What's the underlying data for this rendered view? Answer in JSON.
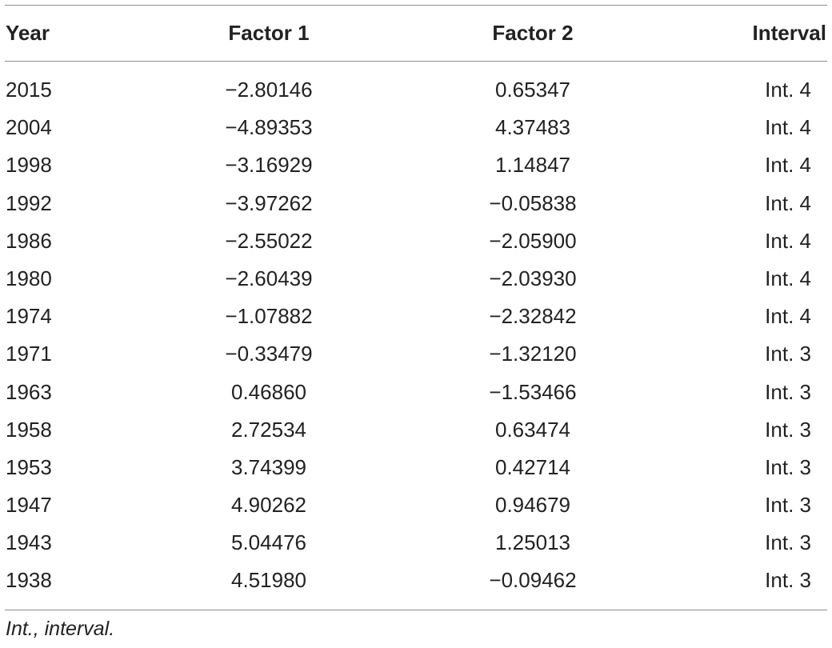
{
  "table": {
    "headers": {
      "year": "Year",
      "factor1": "Factor 1",
      "factor2": "Factor 2",
      "interval": "Interval"
    },
    "rows": [
      {
        "year": "2015",
        "factor1": "−2.80146",
        "factor2": "0.65347",
        "interval": "Int. 4"
      },
      {
        "year": "2004",
        "factor1": "−4.89353",
        "factor2": "4.37483",
        "interval": "Int. 4"
      },
      {
        "year": "1998",
        "factor1": "−3.16929",
        "factor2": "1.14847",
        "interval": "Int. 4"
      },
      {
        "year": "1992",
        "factor1": "−3.97262",
        "factor2": "−0.05838",
        "interval": "Int. 4"
      },
      {
        "year": "1986",
        "factor1": "−2.55022",
        "factor2": "−2.05900",
        "interval": "Int. 4"
      },
      {
        "year": "1980",
        "factor1": "−2.60439",
        "factor2": "−2.03930",
        "interval": "Int. 4"
      },
      {
        "year": "1974",
        "factor1": "−1.07882",
        "factor2": "−2.32842",
        "interval": "Int. 4"
      },
      {
        "year": "1971",
        "factor1": "−0.33479",
        "factor2": "−1.32120",
        "interval": "Int. 3"
      },
      {
        "year": "1963",
        "factor1": "0.46860",
        "factor2": "−1.53466",
        "interval": "Int. 3"
      },
      {
        "year": "1958",
        "factor1": "2.72534",
        "factor2": "0.63474",
        "interval": "Int. 3"
      },
      {
        "year": "1953",
        "factor1": "3.74399",
        "factor2": "0.42714",
        "interval": "Int. 3"
      },
      {
        "year": "1947",
        "factor1": "4.90262",
        "factor2": "0.94679",
        "interval": "Int. 3"
      },
      {
        "year": "1943",
        "factor1": "5.04476",
        "factor2": "1.25013",
        "interval": "Int. 3"
      },
      {
        "year": "1938",
        "factor1": "4.51980",
        "factor2": "−0.09462",
        "interval": "Int. 3"
      }
    ],
    "footnote": "Int., interval."
  }
}
